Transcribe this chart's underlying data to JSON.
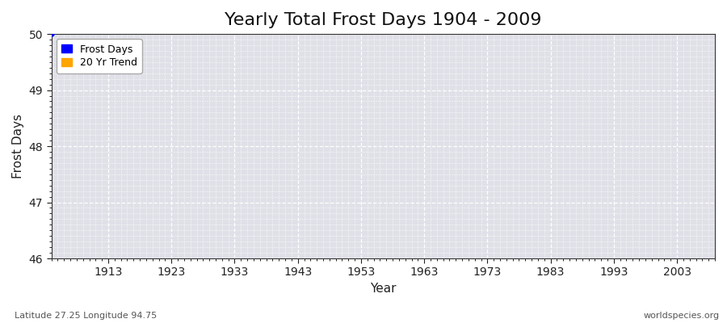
{
  "title": "Yearly Total Frost Days 1904 - 2009",
  "xlabel": "Year",
  "ylabel": "Frost Days",
  "ylim": [
    46,
    50
  ],
  "xlim": [
    1904,
    2009
  ],
  "yticks": [
    46,
    47,
    48,
    49,
    50
  ],
  "xticks": [
    1913,
    1923,
    1933,
    1943,
    1953,
    1963,
    1973,
    1983,
    1993,
    2003
  ],
  "figure_bg_color": "#ffffff",
  "plot_bg_color": "#e0e0e8",
  "grid_color": "#ffffff",
  "spine_color": "#333333",
  "frost_days_color": "#0000ff",
  "trend_color": "#ffa500",
  "frost_days_label": "Frost Days",
  "trend_label": "20 Yr Trend",
  "data_points_x": [
    1904
  ],
  "data_points_y": [
    50
  ],
  "subtitle_left": "Latitude 27.25 Longitude 94.75",
  "subtitle_right": "worldspecies.org",
  "title_fontsize": 16,
  "axis_label_fontsize": 11,
  "tick_fontsize": 10,
  "legend_fontsize": 9
}
